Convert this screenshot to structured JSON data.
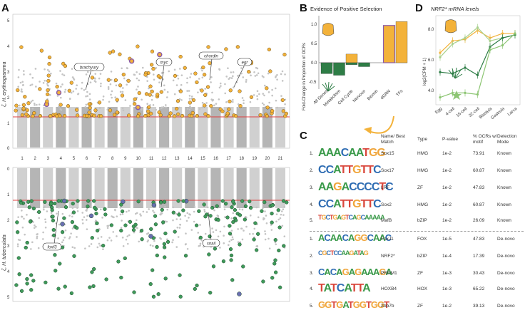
{
  "panel_labels": {
    "a": "A",
    "b": "B",
    "c": "C",
    "d": "D"
  },
  "panel_a": {
    "top_species": "ζ, H. erythrogramma",
    "bottom_species": "ζ, H. tuberculata",
    "top_yticks": [
      "5",
      "4",
      "3",
      "2",
      "1",
      "0"
    ],
    "bottom_yticks": [
      "0",
      "1",
      "2",
      "3",
      "4",
      "5"
    ],
    "chromosomes": [
      "1",
      "2",
      "3",
      "4",
      "5",
      "6",
      "7",
      "8",
      "9",
      "10",
      "11",
      "12",
      "13",
      "14",
      "15",
      "16",
      "17",
      "18",
      "19",
      "20",
      "21"
    ],
    "genes_top": [
      "brachyury",
      "myc",
      "chordin",
      "egr"
    ],
    "genes_bottom": [
      "foxf3",
      "snail"
    ],
    "colors": {
      "top": "#f3b23a",
      "bottom": "#3f9a5a",
      "highlight": "#8a5aa8",
      "threshold": "#e04040",
      "gray": "#b9b9b9"
    }
  },
  "panel_b": {
    "title": "Evidence of Positive Selection",
    "ylabel": "Fold-Change in Proportion of OCRs",
    "yticks": [
      "1.0",
      "0.5",
      "0.0",
      "-0.5"
    ]
  },
  "panel_c": {
    "headers": {
      "name": "Name/ Best Match",
      "type": "Type",
      "pvalue": "P-value",
      "pct": "% OCRs w/ motif",
      "mode": "Detection Mode"
    },
    "rows": [
      {
        "num": "1.",
        "logo": "AAACAATGG",
        "name": "Sox15",
        "type": "HMG",
        "pvalue": "1e-2",
        "pct": "73.91",
        "mode": "Known"
      },
      {
        "num": "2.",
        "logo": "CCATTGTTC",
        "name": "Sox17",
        "type": "HMG",
        "pvalue": "1e-2",
        "pct": "60.87",
        "mode": "Known"
      },
      {
        "num": "3.",
        "logo": "AAGACCCCTC",
        "name": "LRF",
        "type": "ZF",
        "pvalue": "1e-2",
        "pct": "47.83",
        "mode": "Known"
      },
      {
        "num": "4.",
        "logo": "CCATTGTTC",
        "name": "Sox2",
        "type": "HMG",
        "pvalue": "1e-2",
        "pct": "60.87",
        "mode": "Known"
      },
      {
        "num": "5.",
        "logo": "TGCTGAGTCAGCAAAAA",
        "name": "MafB",
        "type": "bZIP",
        "pvalue": "1e-2",
        "pct": "26.09",
        "mode": "Known"
      },
      {
        "num": "1.",
        "logo": "ACAACAGGCAAC",
        "name": "FoxJ1",
        "type": "FOX",
        "pvalue": "1e-5",
        "pct": "47.83",
        "mode": "De-novo"
      },
      {
        "num": "2.",
        "logo": "CGCTCCAAGATAG",
        "name": "NRF2*",
        "type": "bZIP",
        "pvalue": "1e-4",
        "pct": "17.39",
        "mode": "De-novo"
      },
      {
        "num": "3.",
        "logo": "CACAGAGAAAGA",
        "name": "PRDM1",
        "type": "ZF",
        "pvalue": "1e-3",
        "pct": "30.43",
        "mode": "De-novo"
      },
      {
        "num": "4.",
        "logo": "TATCATTA",
        "name": "HOXB4",
        "type": "HOX",
        "pvalue": "1e-3",
        "pct": "65.22",
        "mode": "De-novo"
      },
      {
        "num": "5.",
        "logo": "GGTGATGGTGGT",
        "name": "Zbb7b",
        "type": "ZF",
        "pvalue": "1e-2",
        "pct": "39.13",
        "mode": "De-novo"
      }
    ]
  },
  "panel_d": {
    "title": "NRF2* mRNA levels",
    "ylabel": "log2(CPM + 1)",
    "yticks": [
      "8.0",
      "6.0",
      "4.0"
    ]
  },
  "chart_data": [
    {
      "type": "bar",
      "title": "Evidence of Positive Selection",
      "ylabel": "Fold-Change in Proportion of OCRs",
      "categories": [
        "All Genes",
        "Metabolism",
        "Cell Cycle",
        "Nervous",
        "Biomin",
        "dGRN",
        "TFs"
      ],
      "ylim": [
        -0.6,
        1.1
      ],
      "series": [
        {
          "color": "#f3b23a",
          "values": [
            -0.08,
            0.0,
            0.22,
            0.0,
            0.0,
            0.95,
            1.05
          ]
        },
        {
          "color": "#2e7d46",
          "values": [
            -0.28,
            -0.32,
            -0.05,
            -0.1,
            0.0,
            0.0,
            0.0
          ]
        }
      ]
    },
    {
      "type": "line",
      "title": "NRF2* mRNA levels",
      "ylabel": "log2(CPM + 1)",
      "x": [
        "Egg",
        "4-cell",
        "16-cell",
        "32-cell",
        "Blastula",
        "Gastrula",
        "Larva"
      ],
      "ylim": [
        3.2,
        9.0
      ],
      "series": [
        {
          "color": "#f3b23a",
          "values": [
            6.6,
            7.4,
            7.5,
            8.1,
            7.6,
            7.9,
            7.9
          ]
        },
        {
          "color": "#a9d18e",
          "values": [
            6.3,
            7.2,
            7.6,
            8.3,
            7.4,
            7.6,
            7.8
          ]
        },
        {
          "color": "#2e7d46",
          "values": [
            5.3,
            5.2,
            5.6,
            5.1,
            7.0,
            7.6,
            7.8
          ]
        },
        {
          "color": "#8cc572",
          "values": [
            3.6,
            3.9,
            3.9,
            3.8,
            6.8,
            7.1,
            7.9
          ]
        }
      ]
    }
  ]
}
